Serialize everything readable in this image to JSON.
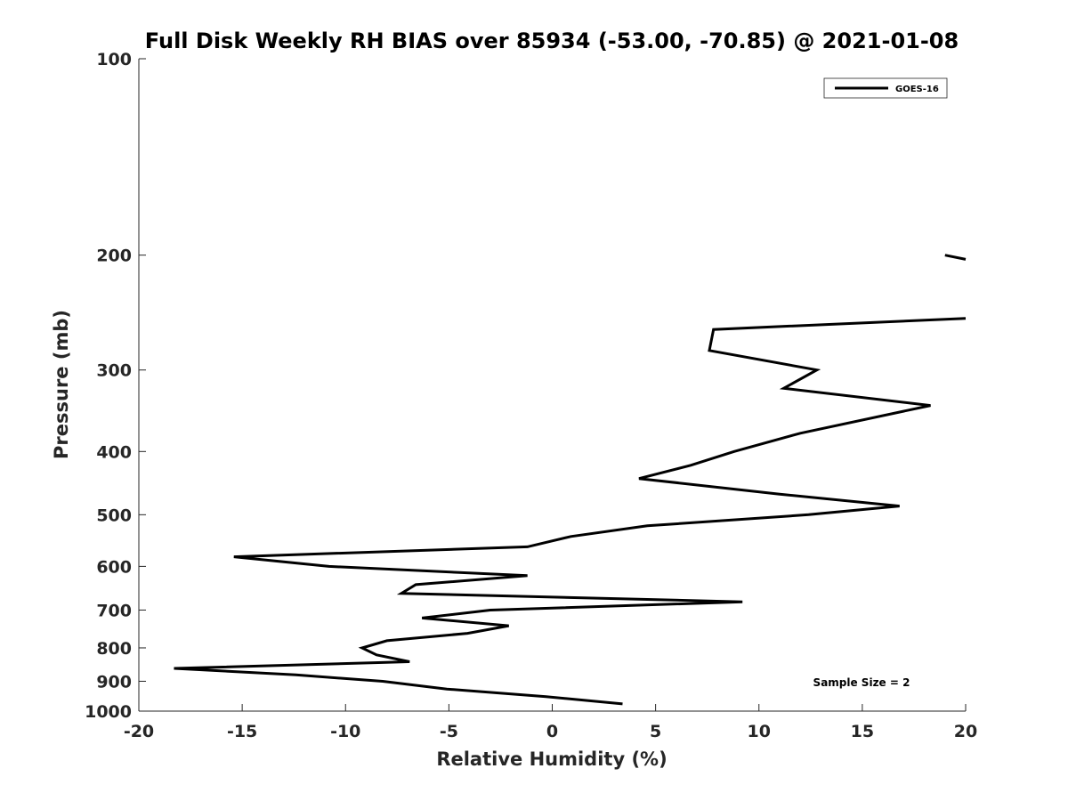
{
  "chart_data": {
    "type": "line",
    "title": "Full Disk Weekly RH BIAS over 85934 (-53.00, -70.85) @ 2021-01-08",
    "xlabel": "Relative Humidity (%)",
    "ylabel": "Pressure (mb)",
    "xlim": [
      -20,
      20
    ],
    "ylim": [
      100,
      1000
    ],
    "yscale": "log",
    "y_reversed": true,
    "grid": false,
    "legend_position": "top-right",
    "x_ticks": [
      -20,
      -15,
      -10,
      -5,
      0,
      5,
      10,
      15,
      20
    ],
    "y_ticks": [
      100,
      200,
      300,
      400,
      500,
      600,
      700,
      800,
      900,
      1000
    ],
    "line_color": "#000000",
    "series": [
      {
        "name": "GOES-16",
        "segments": [
          [
            {
              "x": 19.0,
              "y": 200
            },
            {
              "x": 20.0,
              "y": 203
            }
          ],
          [
            {
              "x": 20.0,
              "y": 250
            },
            {
              "x": 7.8,
              "y": 260
            },
            {
              "x": 7.6,
              "y": 280
            },
            {
              "x": 12.8,
              "y": 300
            },
            {
              "x": 11.2,
              "y": 320
            },
            {
              "x": 18.3,
              "y": 340
            },
            {
              "x": 12.0,
              "y": 375
            },
            {
              "x": 8.8,
              "y": 400
            },
            {
              "x": 6.7,
              "y": 420
            },
            {
              "x": 4.2,
              "y": 440
            },
            {
              "x": 11.0,
              "y": 465
            },
            {
              "x": 16.8,
              "y": 485
            },
            {
              "x": 12.4,
              "y": 500
            },
            {
              "x": 4.6,
              "y": 520
            },
            {
              "x": 0.9,
              "y": 540
            },
            {
              "x": -1.2,
              "y": 560
            },
            {
              "x": -15.4,
              "y": 580
            },
            {
              "x": -10.8,
              "y": 600
            },
            {
              "x": -1.2,
              "y": 620
            },
            {
              "x": -6.6,
              "y": 640
            },
            {
              "x": -7.3,
              "y": 660
            },
            {
              "x": 9.2,
              "y": 680
            },
            {
              "x": -3.0,
              "y": 700
            },
            {
              "x": -6.3,
              "y": 720
            },
            {
              "x": -2.1,
              "y": 740
            },
            {
              "x": -4.1,
              "y": 760
            },
            {
              "x": -8.0,
              "y": 780
            },
            {
              "x": -9.2,
              "y": 800
            },
            {
              "x": -8.5,
              "y": 820
            },
            {
              "x": -6.9,
              "y": 840
            },
            {
              "x": -18.3,
              "y": 860
            },
            {
              "x": -12.4,
              "y": 880
            },
            {
              "x": -8.2,
              "y": 900
            },
            {
              "x": -5.1,
              "y": 925
            },
            {
              "x": -0.3,
              "y": 950
            },
            {
              "x": 3.4,
              "y": 975
            }
          ]
        ]
      }
    ],
    "annotations": [
      {
        "text": "Sample Size = 2",
        "position": "bottom-right"
      }
    ]
  }
}
